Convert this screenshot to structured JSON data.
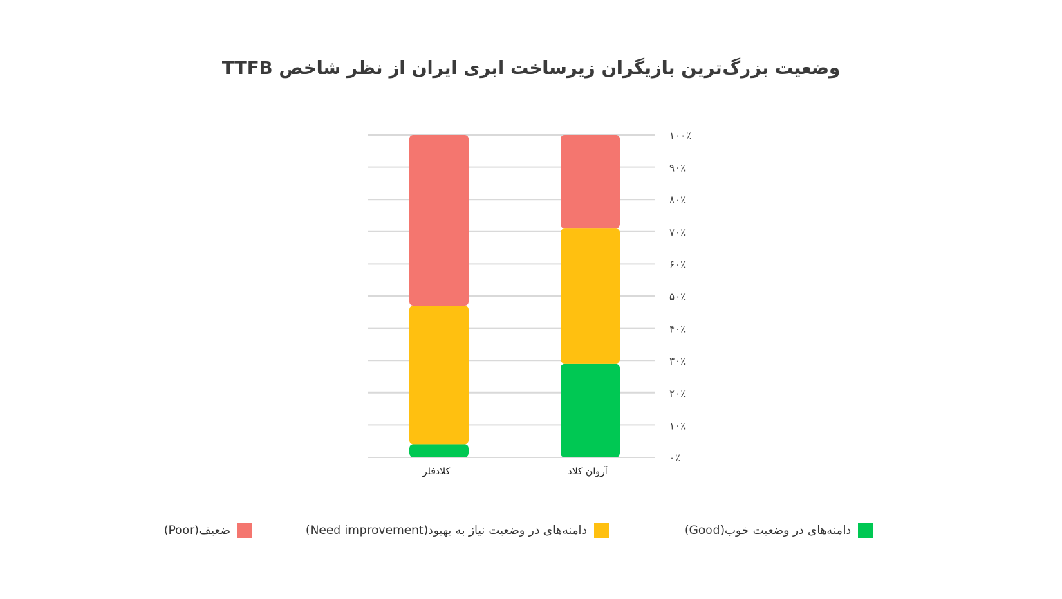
{
  "chart_data": {
    "type": "bar",
    "stacked": true,
    "title": "وضعیت بزرگ‌ترین بازیگران زیرساخت ابری ایران از نظر شاخص TTFB",
    "categories": [
      "کلادفلر",
      "آروان کلاد"
    ],
    "series": [
      {
        "name": "دامنه‌های در وضعیت خوب(Good)",
        "color": "#00C853",
        "values": [
          4,
          29
        ]
      },
      {
        "name": "دامنه‌های در وضعیت نیاز به بهبود(Need improvement)",
        "color": "#FFC010",
        "values": [
          43,
          42
        ]
      },
      {
        "name": "ضعیف(Poor)",
        "color": "#F4766F",
        "values": [
          53,
          29
        ]
      }
    ],
    "ylim": [
      0,
      100
    ],
    "yticks": [
      0,
      10,
      20,
      30,
      40,
      50,
      60,
      70,
      80,
      90,
      100
    ],
    "ytick_labels": [
      "۰٪",
      "۱۰٪",
      "۲۰٪",
      "۳۰٪",
      "۴۰٪",
      "۵۰٪",
      "۶۰٪",
      "۷۰٪",
      "۸۰٪",
      "۹۰٪",
      "۱۰۰٪"
    ],
    "grid": true,
    "xlabel": "",
    "ylabel": "",
    "legend_position": "bottom"
  }
}
